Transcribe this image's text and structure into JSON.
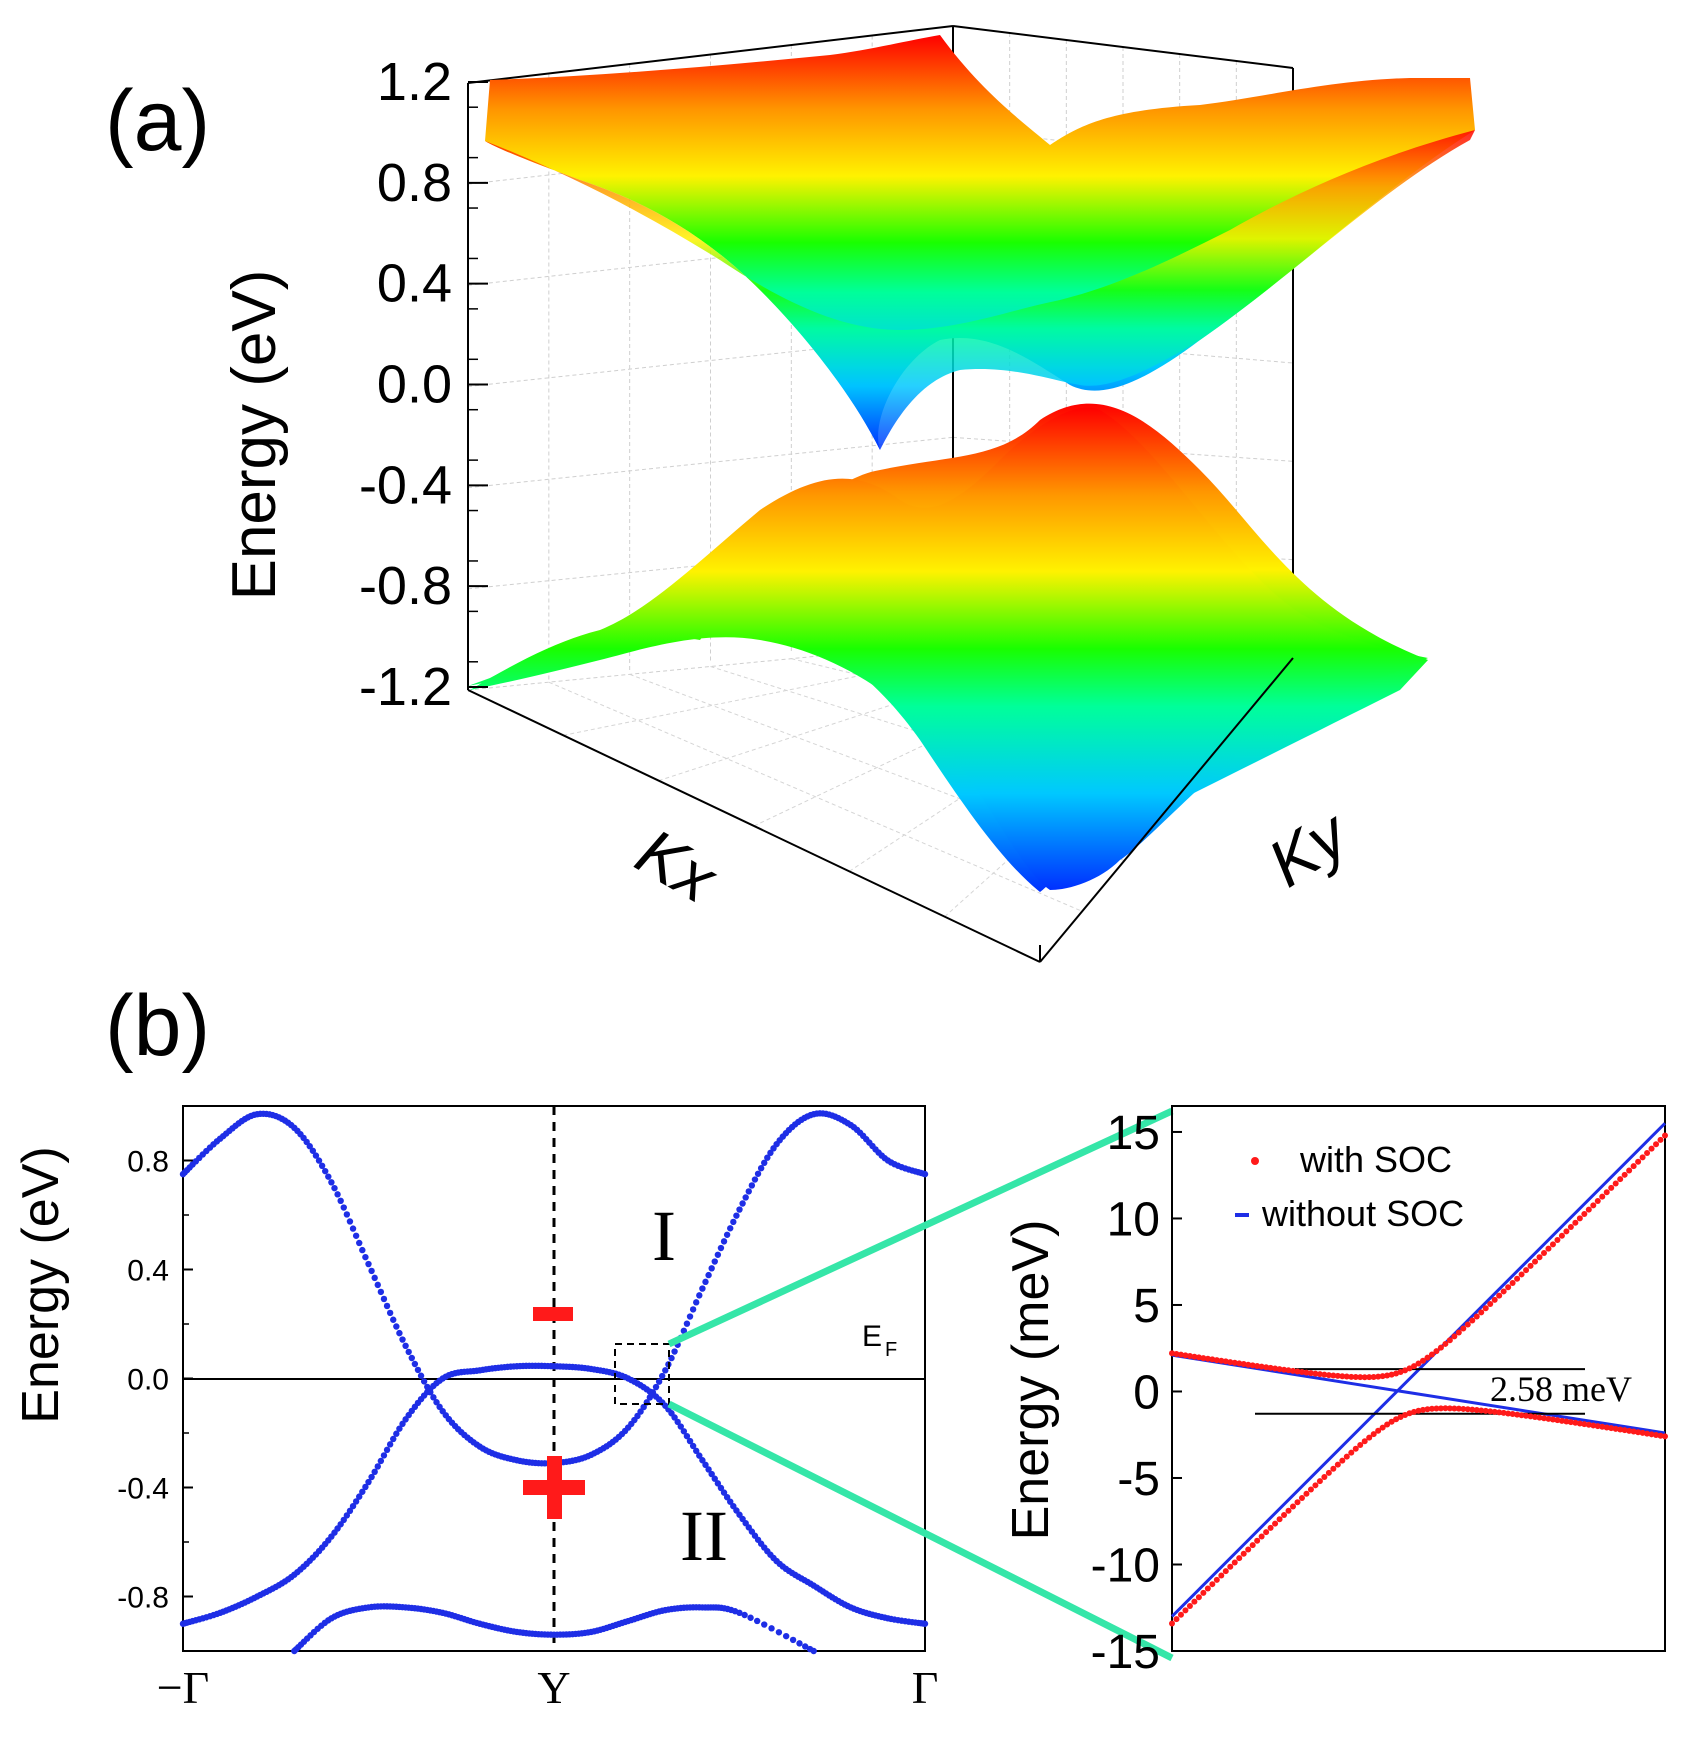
{
  "chart_data": [
    {
      "panel": "(a)",
      "type": "surface",
      "title": "",
      "xlabel": "Kx",
      "ylabel": "Ky",
      "zlabel": "Energy (eV)",
      "zlim": [
        -1.2,
        1.2
      ],
      "z_ticks": [
        "1.2",
        "0.8",
        "0.4",
        "0.0",
        "-0.4",
        "-0.8",
        "-1.2"
      ],
      "grid": true,
      "colormap": [
        "#0030ff",
        "#00c8ff",
        "#00ff9a",
        "#19ff00",
        "#fff200",
        "#ff9600",
        "#ff0000"
      ],
      "bands": [
        {
          "name": "conduction",
          "min": -0.05,
          "max": 1.22
        },
        {
          "name": "valence",
          "min": -1.05,
          "max": 0.08
        }
      ]
    },
    {
      "panel": "(b)",
      "type": "line",
      "ylabel": "Energy (eV)",
      "ylim": [
        -1.0,
        1.0
      ],
      "y_ticks": [
        "0.8",
        "0.4",
        "0.0",
        "-0.4",
        "-0.8"
      ],
      "x_ticks": [
        "−Γ",
        "Y",
        "Γ"
      ],
      "fermi_label": "E",
      "fermi_sub": "F",
      "region_labels": [
        "I",
        "II"
      ],
      "parity_labels": [
        "−",
        "+"
      ],
      "colors": {
        "bands": "#1e2ee6",
        "parity": "#ff1a1a",
        "zoom_lines": "#35e6a8"
      },
      "series": [
        {
          "x": [
            -1,
            -0.9,
            -0.8,
            -0.7,
            -0.6,
            -0.5,
            -0.4,
            -0.3,
            -0.2,
            -0.1,
            0,
            0.1,
            0.2,
            0.3,
            0.4,
            0.5,
            0.6,
            0.7,
            0.8,
            0.9,
            1
          ],
          "y": [
            0.75,
            0.88,
            0.97,
            0.92,
            0.72,
            0.42,
            0.12,
            -0.12,
            -0.25,
            -0.3,
            -0.31,
            -0.28,
            -0.18,
            0.03,
            0.33,
            0.62,
            0.86,
            0.97,
            0.93,
            0.8,
            0.75
          ]
        },
        {
          "x": [
            -1,
            -0.9,
            -0.8,
            -0.7,
            -0.6,
            -0.5,
            -0.4,
            -0.3,
            -0.2,
            -0.1,
            0,
            0.1,
            0.2,
            0.3,
            0.4,
            0.5,
            0.6,
            0.7,
            0.8,
            0.9,
            1
          ],
          "y": [
            -0.9,
            -0.86,
            -0.8,
            -0.72,
            -0.58,
            -0.38,
            -0.15,
            0.0,
            0.03,
            0.045,
            0.045,
            0.035,
            0.0,
            -0.1,
            -0.3,
            -0.5,
            -0.67,
            -0.76,
            -0.84,
            -0.88,
            -0.9
          ]
        },
        {
          "x": [
            -0.7,
            -0.6,
            -0.5,
            -0.4,
            -0.3,
            -0.2,
            -0.1,
            0,
            0.1,
            0.2,
            0.3,
            0.4,
            0.5,
            0.7
          ],
          "y": [
            -1.0,
            -0.88,
            -0.84,
            -0.84,
            -0.86,
            -0.9,
            -0.93,
            -0.94,
            -0.93,
            -0.89,
            -0.85,
            -0.84,
            -0.86,
            -1.0
          ]
        }
      ]
    },
    {
      "panel": "(b) inset",
      "type": "line",
      "ylabel": "Energy (meV)",
      "ylim": [
        -15,
        16.5
      ],
      "y_ticks": [
        "15",
        "10",
        "5",
        "0",
        "-5",
        "-10",
        "-15"
      ],
      "gap_label": "2.58 meV",
      "gap_levels": [
        1.29,
        -1.29
      ],
      "colors": {
        "with_soc": "#ff1a1a",
        "without_soc": "#1e2ee6"
      },
      "series": [
        {
          "name": "with SOC",
          "style": "dots",
          "x_range": [
            0,
            1
          ],
          "slope_a": 28.0,
          "offset_a": -13.3,
          "slope_b": -4.6,
          "offset_b": 2.1
        },
        {
          "name": "without SOC",
          "style": "line",
          "lines": [
            {
              "x": [
                0,
                1
              ],
              "y": [
                -13.0,
                15.5
              ]
            },
            {
              "x": [
                0,
                1
              ],
              "y": [
                2.1,
                -2.4
              ]
            }
          ]
        }
      ]
    }
  ],
  "panel_labels": {
    "a": "(a)",
    "b": "(b)"
  }
}
